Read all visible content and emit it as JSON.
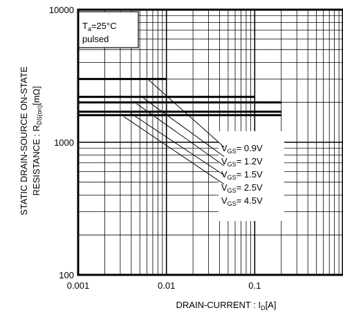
{
  "chart_data": {
    "type": "line",
    "x_scale": "log",
    "y_scale": "log",
    "xlim": [
      0.001,
      1
    ],
    "ylim": [
      100,
      10000
    ],
    "x_ticks": [
      "0.001",
      "0.01",
      "0.1"
    ],
    "y_ticks": [
      "100",
      "1000",
      "10000"
    ],
    "xlabel": {
      "main": "DRAIN-CURRENT : I",
      "sub": "D",
      "tail": "[A]"
    },
    "ylabel": {
      "line1": "STATIC DRAIN-SOURCE ON-STATE",
      "line2_main": "RESISTANCE : R",
      "line2_sub": "DS(on)",
      "line2_tail": "[mΩ]"
    },
    "conditions": {
      "line1_main": "T",
      "line1_sub": "a",
      "line1_tail": "=25°C",
      "line2": "pulsed"
    },
    "grid": true,
    "series": [
      {
        "name_main": "V",
        "name_sub": "GS",
        "name_tail": "= 0.9V",
        "points": [
          [
            0.001,
            3000
          ],
          [
            0.01,
            3000
          ]
        ]
      },
      {
        "name_main": "V",
        "name_sub": "GS",
        "name_tail": "= 1.2V",
        "points": [
          [
            0.001,
            2200
          ],
          [
            0.1,
            2200
          ]
        ]
      },
      {
        "name_main": "V",
        "name_sub": "GS",
        "name_tail": "= 1.5V",
        "points": [
          [
            0.001,
            2000
          ],
          [
            0.2,
            2000
          ]
        ]
      },
      {
        "name_main": "V",
        "name_sub": "GS",
        "name_tail": "= 2.5V",
        "points": [
          [
            0.001,
            1700
          ],
          [
            0.2,
            1700
          ]
        ]
      },
      {
        "name_main": "V",
        "name_sub": "GS",
        "name_tail": "= 4.5V",
        "points": [
          [
            0.001,
            1600
          ],
          [
            0.2,
            1600
          ]
        ]
      }
    ],
    "leader_lines": [
      {
        "from": [
          0.0063,
          2950
        ],
        "to": [
          0.045,
          920
        ]
      },
      {
        "from": [
          0.0055,
          2150
        ],
        "to": [
          0.045,
          780
        ]
      },
      {
        "from": [
          0.0046,
          1950
        ],
        "to": [
          0.045,
          665
        ]
      },
      {
        "from": [
          0.0039,
          1660
        ],
        "to": [
          0.045,
          565
        ]
      },
      {
        "from": [
          0.0033,
          1560
        ],
        "to": [
          0.045,
          482
        ]
      }
    ]
  }
}
